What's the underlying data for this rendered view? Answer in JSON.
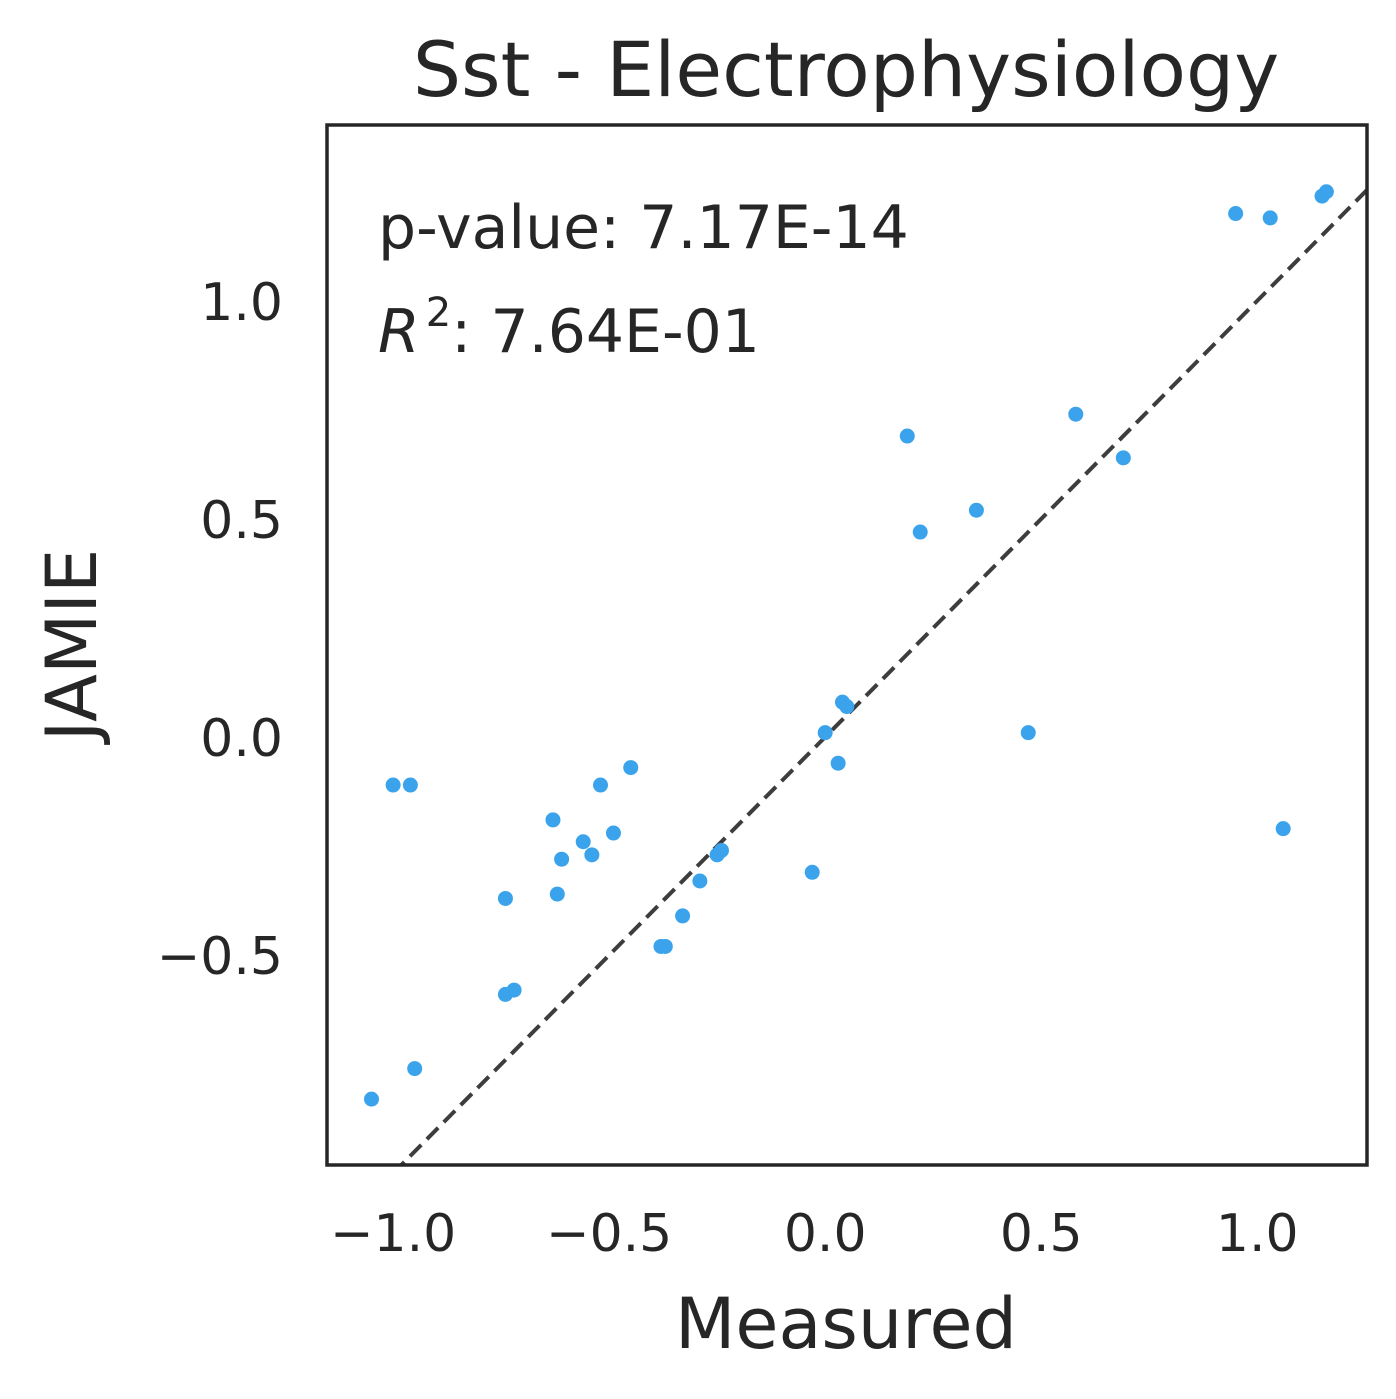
{
  "chart_data": {
    "type": "scatter",
    "title": "Sst - Electrophysiology",
    "xlabel": "Measured",
    "ylabel": "JAMIE",
    "xlim": [
      -1.153,
      1.254
    ],
    "ylim": [
      -0.981,
      1.403
    ],
    "xticks": [
      -1.0,
      -0.5,
      0.0,
      0.5,
      1.0
    ],
    "xtick_labels": [
      "−1.0",
      "−0.5",
      "0.0",
      "0.5",
      "1.0"
    ],
    "yticks": [
      -0.5,
      0.0,
      0.5,
      1.0
    ],
    "ytick_labels": [
      "−0.5",
      "0.0",
      "0.5",
      "1.0"
    ],
    "grid": false,
    "annotations": {
      "pvalue": "p-value: 7.17E-14",
      "r2_symbol": "R",
      "r2_exp": "2",
      "r2_value": ": 7.64E-01"
    },
    "reference_line": {
      "style": "dashed",
      "color": "#3d3d3f",
      "points": [
        [
          -1.0,
          -1.0
        ],
        [
          1.3,
          1.3
        ]
      ]
    },
    "point_color": "#3ba3ec",
    "x": [
      1.16,
      1.15,
      0.95,
      1.03,
      0.58,
      0.19,
      0.69,
      0.35,
      0.22,
      0.04,
      0.05,
      0.0,
      0.47,
      0.03,
      -0.96,
      -1.0,
      -0.45,
      -0.52,
      -0.63,
      -0.49,
      -0.56,
      -0.61,
      -0.54,
      -0.24,
      -0.25,
      -0.29,
      -0.03,
      -0.74,
      -0.62,
      -0.33,
      -0.74,
      -0.72,
      -0.37,
      -0.95,
      -1.05,
      -0.38,
      1.06
    ],
    "y": [
      1.25,
      1.24,
      1.2,
      1.19,
      0.74,
      0.69,
      0.64,
      0.52,
      0.47,
      0.08,
      0.07,
      0.01,
      0.01,
      -0.06,
      -0.11,
      -0.11,
      -0.07,
      -0.11,
      -0.19,
      -0.22,
      -0.24,
      -0.28,
      -0.27,
      -0.26,
      -0.27,
      -0.33,
      -0.31,
      -0.37,
      -0.36,
      -0.41,
      -0.59,
      -0.58,
      -0.48,
      -0.76,
      -0.83,
      -0.48,
      -0.21
    ]
  }
}
